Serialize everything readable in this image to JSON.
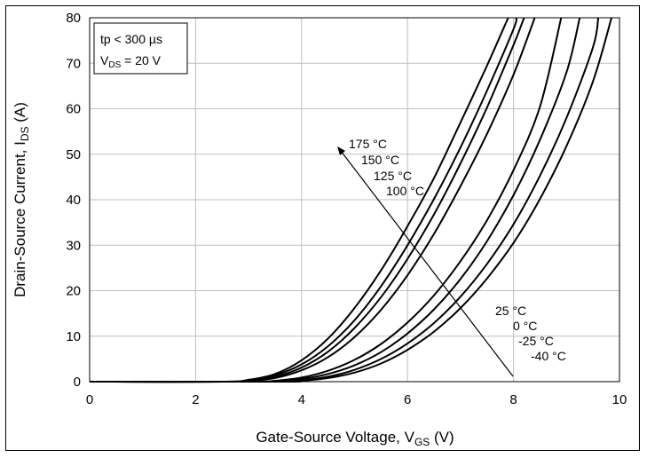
{
  "chart_data": {
    "type": "line",
    "title": "",
    "xlabel": {
      "main": "Gate-Source Voltage, V",
      "sub": "GS",
      "unit": " (V)"
    },
    "ylabel": {
      "main": "Drain-Source Current, I",
      "sub": "DS",
      "unit": " (A)"
    },
    "xlim": [
      0,
      10
    ],
    "ylim": [
      0,
      80
    ],
    "xticks": [
      0,
      2,
      4,
      6,
      8,
      10
    ],
    "yticks": [
      0,
      10,
      20,
      30,
      40,
      50,
      60,
      70,
      80
    ],
    "grid": true,
    "conditions": {
      "line1": "tp < 300 µs",
      "line2": {
        "main": "V",
        "sub": "DS",
        "rest": " = 20 V"
      }
    },
    "series": [
      {
        "name": "175 °C",
        "x": [
          0,
          2.5,
          3.0,
          3.5,
          4.0,
          4.5,
          5.0,
          5.5,
          6.0,
          6.5,
          7.0,
          7.5,
          7.9
        ],
        "y": [
          0,
          0,
          0.4,
          1.7,
          4.7,
          9.5,
          16.2,
          24.5,
          34.2,
          44.8,
          57.0,
          69.5,
          80.0
        ]
      },
      {
        "name": "150 °C",
        "x": [
          0,
          2.5,
          3.0,
          3.5,
          4.0,
          4.5,
          5.0,
          5.5,
          6.0,
          6.5,
          7.0,
          7.5,
          8.0,
          8.05
        ],
        "y": [
          0,
          0,
          0.3,
          1.4,
          3.8,
          7.8,
          13.5,
          21.0,
          30.0,
          40.2,
          51.5,
          64.0,
          77.5,
          80.0
        ]
      },
      {
        "name": "125 °C",
        "x": [
          0,
          2.6,
          3.0,
          3.5,
          4.0,
          4.5,
          5.0,
          5.5,
          6.0,
          6.5,
          7.0,
          7.5,
          8.0,
          8.2
        ],
        "y": [
          0,
          0,
          0.2,
          1.1,
          3.1,
          6.6,
          11.8,
          18.6,
          27.0,
          36.8,
          48.0,
          60.3,
          74.0,
          80.0
        ]
      },
      {
        "name": "100 °C",
        "x": [
          0,
          2.7,
          3.0,
          3.5,
          4.0,
          4.5,
          5.0,
          5.5,
          6.0,
          6.5,
          7.0,
          7.5,
          8.0,
          8.4
        ],
        "y": [
          0,
          0,
          0.1,
          0.8,
          2.5,
          5.4,
          9.8,
          15.8,
          23.4,
          32.5,
          43.0,
          54.5,
          67.5,
          80.0
        ]
      },
      {
        "name": "25 °C",
        "x": [
          0,
          3.0,
          3.5,
          4.0,
          4.5,
          5.0,
          5.5,
          6.0,
          6.5,
          7.0,
          7.5,
          8.0,
          8.5,
          8.9
        ],
        "y": [
          0,
          0,
          0.2,
          0.9,
          2.4,
          4.8,
          8.3,
          13.0,
          19.0,
          26.5,
          35.5,
          46.5,
          60.5,
          80.0
        ]
      },
      {
        "name": "0 °C",
        "x": [
          0,
          3.2,
          3.5,
          4.0,
          4.5,
          5.0,
          5.5,
          6.0,
          6.5,
          7.0,
          7.5,
          8.0,
          8.5,
          9.0,
          9.25
        ],
        "y": [
          0,
          0,
          0.1,
          0.6,
          1.7,
          3.6,
          6.5,
          10.6,
          15.9,
          22.6,
          30.9,
          41.0,
          53.2,
          68.0,
          80.0
        ]
      },
      {
        "name": "-25 °C",
        "x": [
          0,
          3.4,
          4.0,
          4.5,
          5.0,
          5.5,
          6.0,
          6.5,
          7.0,
          7.5,
          8.0,
          8.5,
          9.0,
          9.5,
          9.6
        ],
        "y": [
          0,
          0,
          0.3,
          1.1,
          2.6,
          5.0,
          8.4,
          12.9,
          18.7,
          25.9,
          34.6,
          45.3,
          58.0,
          73.5,
          80.0
        ]
      },
      {
        "name": "-40 °C",
        "x": [
          0,
          3.6,
          4.0,
          4.5,
          5.0,
          5.5,
          6.0,
          6.5,
          7.0,
          7.5,
          8.0,
          8.5,
          9.0,
          9.5,
          9.85
        ],
        "y": [
          0,
          0,
          0.2,
          0.8,
          2.0,
          4.0,
          7.0,
          11.0,
          16.2,
          22.7,
          30.5,
          40.2,
          51.8,
          66.0,
          80.0
        ]
      }
    ],
    "temperature_labels": [
      "175 °C",
      "150 °C",
      "125 °C",
      "100 °C",
      "25 °C",
      "0 °C",
      "-25 °C",
      "-40 °C"
    ]
  }
}
